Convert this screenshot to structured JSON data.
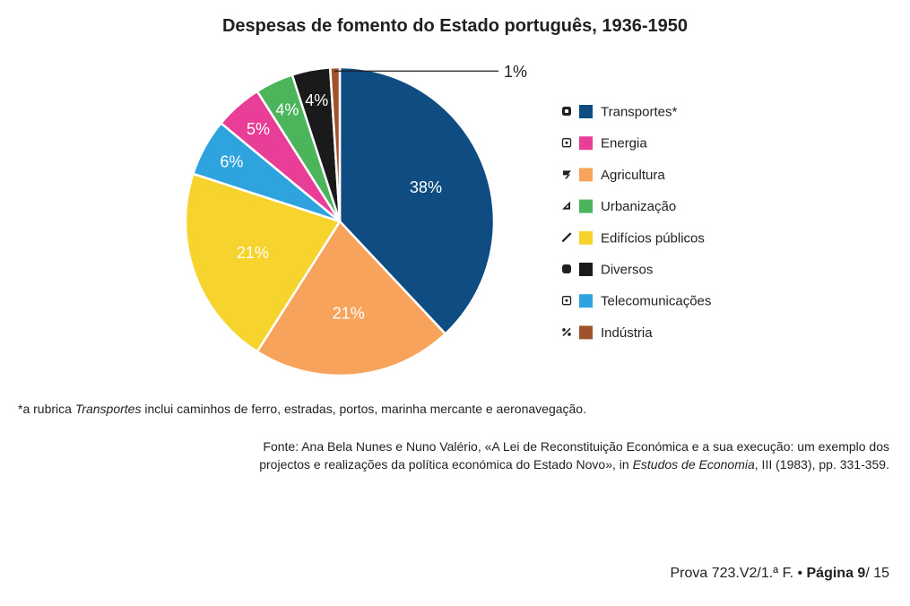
{
  "chart_data": {
    "type": "pie",
    "title": "Despesas de fomento do Estado português, 1936-1950",
    "start_angle_deg": 0,
    "direction": "clockwise",
    "slices": [
      {
        "name": "Transportes*",
        "value": 38,
        "label": "38%",
        "color": "#0f4c81",
        "icon": "rounded-square-icon"
      },
      {
        "name": "Agricultura",
        "value": 21,
        "label": "21%",
        "color": "#f7a35c",
        "icon": "tilted-parallelogram-icon"
      },
      {
        "name": "Edifícios públicos",
        "value": 21,
        "label": "21%",
        "color": "#f6d32d",
        "icon": "slash-icon"
      },
      {
        "name": "Telecomunicações",
        "value": 6,
        "label": "6%",
        "color": "#2ea3dd",
        "icon": "dotted-square-icon"
      },
      {
        "name": "Energia",
        "value": 5,
        "label": "5%",
        "color": "#e83e97",
        "icon": "dotted-square-icon"
      },
      {
        "name": "Urbanização",
        "value": 4,
        "label": "4%",
        "color": "#4cb55c",
        "icon": "triangle-icon"
      },
      {
        "name": "Diversos",
        "value": 4,
        "label": "4%",
        "color": "#1a1a1a",
        "icon": "filled-rounded-square-icon"
      },
      {
        "name": "Indústria",
        "value": 1,
        "label": "1%",
        "color": "#a0522d",
        "icon": "percent-icon"
      }
    ],
    "legend_order": [
      "Transportes*",
      "Energia",
      "Agricultura",
      "Urbanização",
      "Edifícios públicos",
      "Diversos",
      "Telecomunicações",
      "Indústria"
    ],
    "legend_position": "right"
  },
  "footnote": {
    "prefix": "*a rubrica ",
    "italic": "Transportes",
    "suffix": " inclui caminhos de ferro, estradas, portos, marinha mercante e aeronavegação."
  },
  "source": {
    "line1": "Fonte: Ana Bela Nunes e Nuno Valério, «A Lei de Reconstituição Económica e a sua execução: um exemplo dos",
    "line2_prefix": "projectos e realizações da política económica do Estado Novo», in ",
    "line2_italic": "Estudos de Economia",
    "line2_suffix": ", III (1983), pp. 331-359."
  },
  "page_footer": {
    "prefix": "Prova 723.V2/1.ª F. • ",
    "page_label": "Página 9",
    "suffix": "/ 15"
  }
}
